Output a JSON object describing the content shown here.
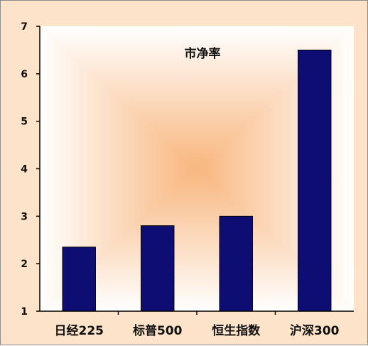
{
  "chart_data": {
    "type": "bar",
    "title": "市净率",
    "categories": [
      "日经225",
      "标普500",
      "恒生指数",
      "沪深300"
    ],
    "values": [
      2.35,
      2.8,
      3.0,
      6.5
    ],
    "ylim": [
      1,
      7
    ],
    "yticks": [
      1,
      2,
      3,
      4,
      5,
      6,
      7
    ],
    "bar_color": "#0d0d73",
    "background_outer": "#fde3c9",
    "plot_center_color": "#f8b67e",
    "plot_edge_color": "#ffffff",
    "grid": false,
    "legend": "none"
  }
}
